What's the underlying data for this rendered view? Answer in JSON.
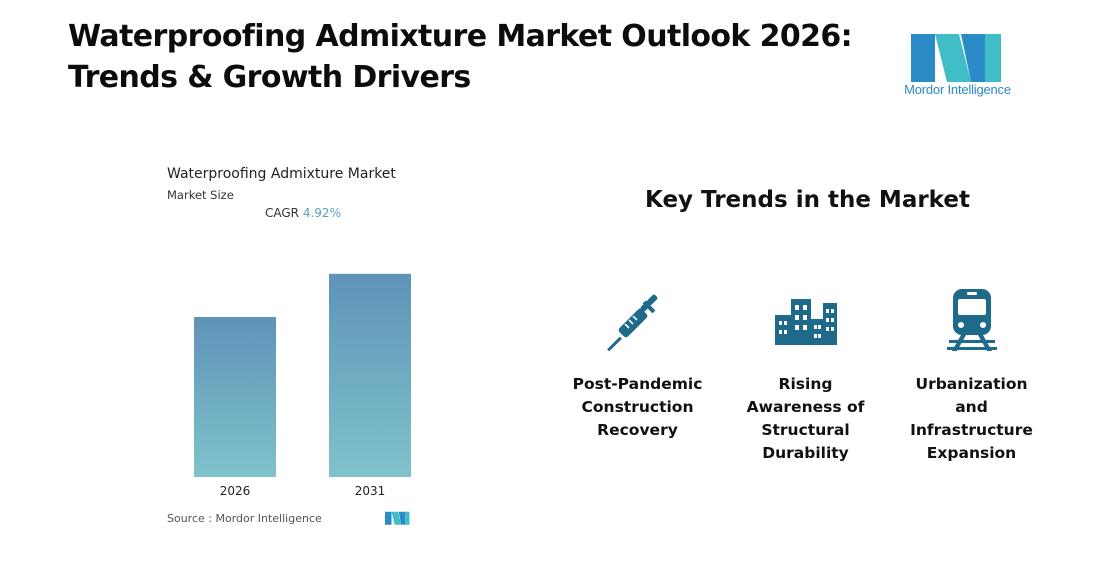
{
  "header": {
    "title_line1": "Waterproofing Admixture Market Outlook 2026:",
    "title_line2": "Trends & Growth Drivers"
  },
  "logo": {
    "text": "Mordor Intelligence",
    "icon": "mordor-intelligence-logo"
  },
  "chart": {
    "title": "Waterproofing Admixture Market",
    "subtitle": "Market Size",
    "cagr_label": "CAGR",
    "cagr_value": "4.92%",
    "source_label": "Source :",
    "source_value": "Mordor Intelligence"
  },
  "chart_data": {
    "type": "bar",
    "title": "Waterproofing Admixture Market",
    "categories": [
      "2026",
      "2031"
    ],
    "values": [
      1.0,
      1.27
    ],
    "ylim": [
      0,
      1.3
    ],
    "grid": false,
    "colors": {
      "top": "#5f93b8",
      "bottom": "#7fc3cb"
    }
  },
  "trends": {
    "title": "Key Trends in the Market",
    "items": [
      {
        "label_lines": [
          "Post-Pandemic",
          "Construction",
          "Recovery"
        ],
        "icon": "syringe-icon"
      },
      {
        "label_lines": [
          "Rising",
          "Awareness of",
          "Structural",
          "Durability"
        ],
        "icon": "buildings-icon"
      },
      {
        "label_lines": [
          "Urbanization",
          "and",
          "Infrastructure",
          "Expansion"
        ],
        "icon": "train-icon"
      }
    ],
    "icon_color": "#1e6a8a"
  }
}
